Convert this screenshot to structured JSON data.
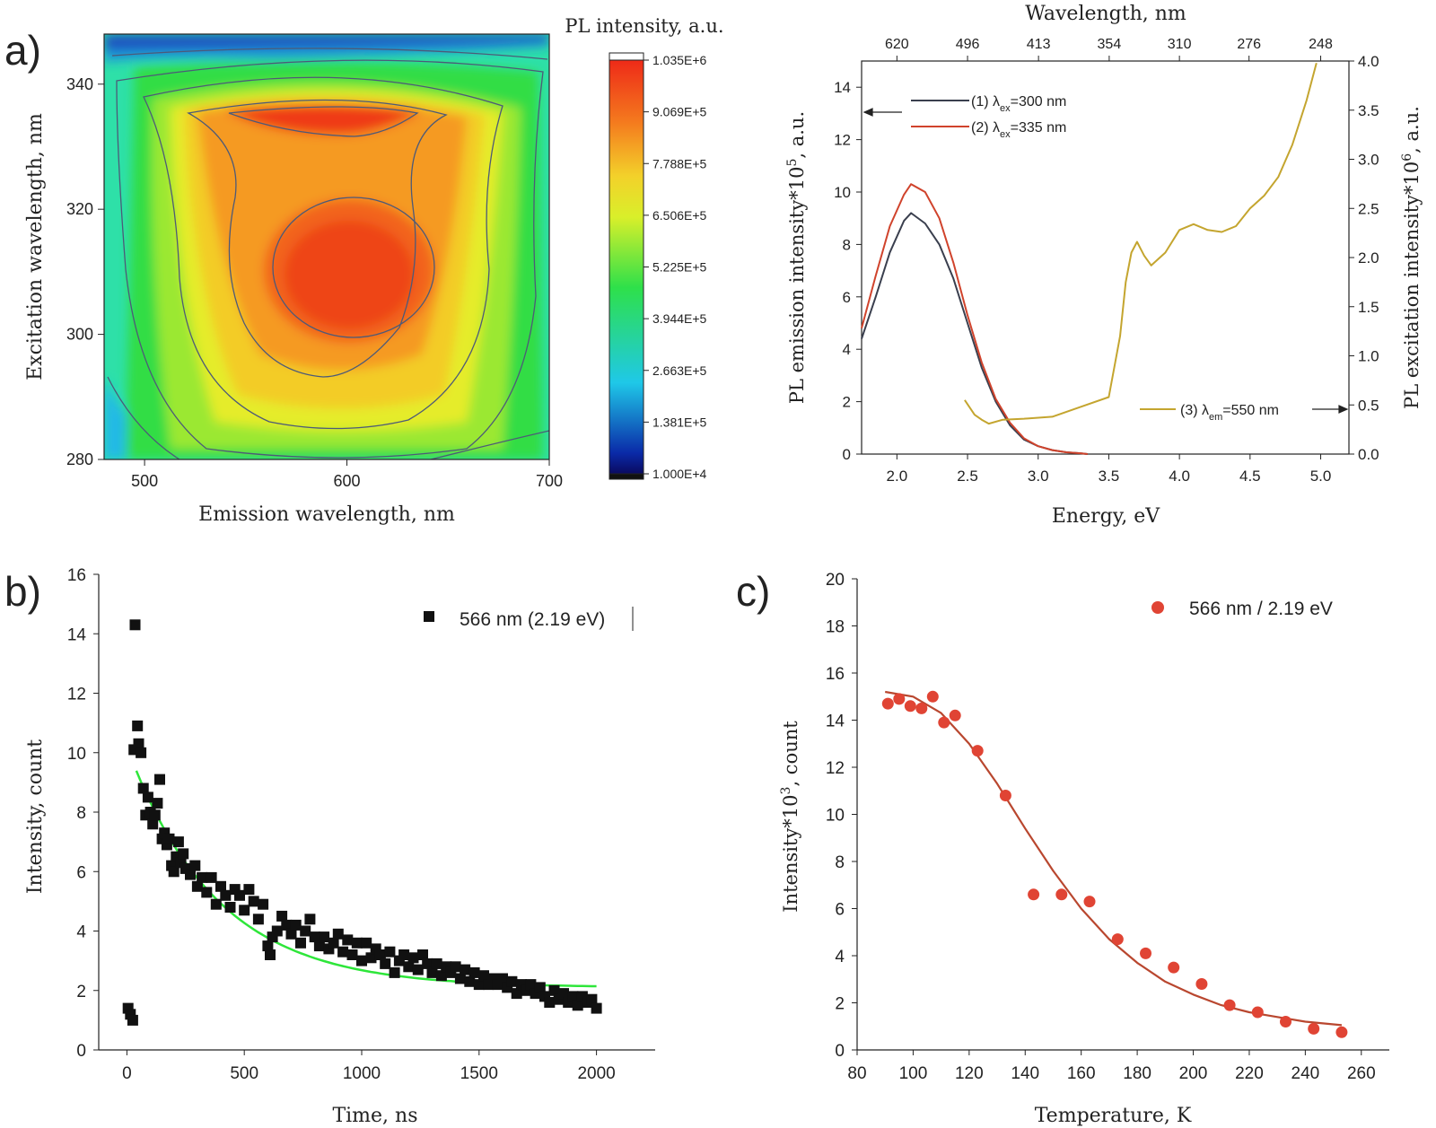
{
  "panel_labels": {
    "a": "a)",
    "b": "b)",
    "c": "c)"
  },
  "chart_data": [
    {
      "id": "a-map",
      "type": "heatmap",
      "xlabel": "Emission wavelength, nm",
      "ylabel": "Excitation wavelength, nm",
      "xlim": [
        480,
        700
      ],
      "ylim": [
        280,
        348
      ],
      "xticks": [
        "500",
        "600",
        "700"
      ],
      "yticks": [
        "280",
        "300",
        "320",
        "340"
      ],
      "peak_centers": [
        {
          "emission_nm": 590,
          "excitation_nm": 311,
          "intensity": 1000000
        },
        {
          "emission_nm": 590,
          "excitation_nm": 334,
          "intensity": 1000000
        }
      ],
      "colorbar": {
        "title": "PL intensity, a.u.",
        "range": [
          10000,
          1035000
        ],
        "ticks": [
          "1.035E+6",
          "9.069E+5",
          "7.788E+5",
          "6.506E+5",
          "5.225E+5",
          "3.944E+5",
          "2.663E+5",
          "1.381E+5",
          "1.000E+4"
        ]
      }
    },
    {
      "id": "a-spectra",
      "type": "line",
      "xlabel": "Energy, eV",
      "top_xlabel": "Wavelength, nm",
      "ylabel_left": "PL emission intensity*10⁵, a.u.",
      "ylabel_right": "PL excitation intensity*10⁶, a.u.",
      "xlim": [
        1.75,
        5.2
      ],
      "ylim_left": [
        0,
        15
      ],
      "ylim_right": [
        0,
        4
      ],
      "xticks": [
        "2.0",
        "2.5",
        "3.0",
        "3.5",
        "4.0",
        "4.5",
        "5.0"
      ],
      "yticks_left": [
        "0",
        "2",
        "4",
        "6",
        "8",
        "10",
        "12",
        "14"
      ],
      "yticks_right": [
        "0.0",
        "0.5",
        "1.0",
        "1.5",
        "2.0",
        "2.5",
        "3.0",
        "3.5",
        "4.0"
      ],
      "top_ticks": [
        "620",
        "496",
        "413",
        "354",
        "310",
        "276",
        "248"
      ],
      "series": [
        {
          "name": "(1) λex=300 nm",
          "label_main": "(1) λ",
          "label_sub": "ex",
          "label_tail": "=300 nm",
          "axis": "left",
          "color": "#3a3f4e",
          "x": [
            1.75,
            1.85,
            1.95,
            2.05,
            2.1,
            2.2,
            2.3,
            2.4,
            2.5,
            2.6,
            2.7,
            2.8,
            2.9,
            3.0,
            3.1,
            3.2,
            3.3,
            3.35
          ],
          "y": [
            4.4,
            6.0,
            7.7,
            8.9,
            9.2,
            8.8,
            8.0,
            6.7,
            5.0,
            3.3,
            2.0,
            1.1,
            0.55,
            0.3,
            0.15,
            0.07,
            0.03,
            0.0
          ]
        },
        {
          "name": "(2) λex=335 nm",
          "label_main": "(2) λ",
          "label_sub": "ex",
          "label_tail": "=335 nm",
          "axis": "left",
          "color": "#d0432c",
          "x": [
            1.75,
            1.85,
            1.95,
            2.05,
            2.1,
            2.2,
            2.3,
            2.4,
            2.5,
            2.6,
            2.7,
            2.8,
            2.9,
            3.0,
            3.1,
            3.2,
            3.3,
            3.35
          ],
          "y": [
            4.8,
            6.8,
            8.7,
            9.9,
            10.3,
            10.0,
            9.0,
            7.3,
            5.3,
            3.5,
            2.1,
            1.2,
            0.6,
            0.3,
            0.15,
            0.07,
            0.03,
            0.0
          ]
        },
        {
          "name": "(3) λem=550 nm",
          "label_main": "(3) λ",
          "label_sub": "em",
          "label_tail": "=550 nm",
          "axis": "right",
          "color": "#c4a52f",
          "x": [
            2.48,
            2.55,
            2.6,
            2.65,
            2.75,
            2.9,
            3.1,
            3.3,
            3.5,
            3.58,
            3.62,
            3.66,
            3.7,
            3.75,
            3.8,
            3.9,
            4.0,
            4.1,
            4.2,
            4.3,
            4.4,
            4.5,
            4.6,
            4.7,
            4.8,
            4.9,
            4.97
          ],
          "y": [
            0.55,
            0.4,
            0.35,
            0.31,
            0.35,
            0.36,
            0.38,
            0.48,
            0.58,
            1.2,
            1.75,
            2.05,
            2.16,
            2.02,
            1.92,
            2.05,
            2.28,
            2.34,
            2.28,
            2.26,
            2.32,
            2.5,
            2.63,
            2.82,
            3.15,
            3.6,
            3.98
          ]
        }
      ],
      "annotations": [
        "left-arrow at 13 (left axis)",
        "right-arrow at 0.48 (right axis)"
      ]
    },
    {
      "id": "b",
      "type": "scatter",
      "xlabel": "Time, ns",
      "ylabel": "Intensity, count",
      "xlim": [
        -120,
        2250
      ],
      "ylim": [
        0,
        16
      ],
      "xticks": [
        "0",
        "500",
        "1000",
        "1500",
        "2000"
      ],
      "yticks": [
        "0",
        "2",
        "4",
        "6",
        "8",
        "10",
        "12",
        "14",
        "16"
      ],
      "legend": "566 nm (2.19 eV)",
      "fit_color": "#2ee63a",
      "fit": {
        "model": "y = A*exp(-t/tau) + C",
        "A": 8.1,
        "tau": 380,
        "C": 2.1,
        "x_range": [
          40,
          2000
        ]
      },
      "points": [
        [
          5,
          1.4
        ],
        [
          15,
          1.2
        ],
        [
          25,
          1.0
        ],
        [
          35,
          14.3
        ],
        [
          45,
          10.9
        ],
        [
          30,
          10.1
        ],
        [
          50,
          10.3
        ],
        [
          60,
          10.0
        ],
        [
          70,
          8.8
        ],
        [
          80,
          7.9
        ],
        [
          90,
          8.5
        ],
        [
          100,
          8.0
        ],
        [
          110,
          7.6
        ],
        [
          120,
          7.9
        ],
        [
          130,
          8.3
        ],
        [
          140,
          9.1
        ],
        [
          150,
          7.1
        ],
        [
          160,
          7.3
        ],
        [
          170,
          6.9
        ],
        [
          180,
          7.1
        ],
        [
          190,
          6.2
        ],
        [
          200,
          6.0
        ],
        [
          210,
          6.5
        ],
        [
          220,
          7.0
        ],
        [
          230,
          6.3
        ],
        [
          240,
          6.6
        ],
        [
          250,
          6.1
        ],
        [
          270,
          5.9
        ],
        [
          290,
          6.2
        ],
        [
          300,
          5.5
        ],
        [
          320,
          5.8
        ],
        [
          340,
          5.3
        ],
        [
          360,
          5.8
        ],
        [
          380,
          4.9
        ],
        [
          400,
          5.5
        ],
        [
          420,
          5.2
        ],
        [
          440,
          4.8
        ],
        [
          460,
          5.4
        ],
        [
          480,
          5.2
        ],
        [
          500,
          4.7
        ],
        [
          520,
          5.4
        ],
        [
          540,
          5.0
        ],
        [
          560,
          4.4
        ],
        [
          580,
          4.9
        ],
        [
          600,
          3.5
        ],
        [
          610,
          3.2
        ],
        [
          620,
          3.8
        ],
        [
          640,
          4.0
        ],
        [
          660,
          4.5
        ],
        [
          680,
          4.2
        ],
        [
          700,
          3.9
        ],
        [
          720,
          4.2
        ],
        [
          740,
          3.6
        ],
        [
          760,
          4.0
        ],
        [
          780,
          4.4
        ],
        [
          800,
          3.8
        ],
        [
          820,
          3.5
        ],
        [
          840,
          3.8
        ],
        [
          860,
          3.4
        ],
        [
          880,
          3.6
        ],
        [
          900,
          3.9
        ],
        [
          920,
          3.3
        ],
        [
          940,
          3.7
        ],
        [
          960,
          3.2
        ],
        [
          980,
          3.6
        ],
        [
          1000,
          3.0
        ],
        [
          1020,
          3.6
        ],
        [
          1040,
          3.1
        ],
        [
          1060,
          3.4
        ],
        [
          1080,
          3.2
        ],
        [
          1100,
          2.9
        ],
        [
          1120,
          3.3
        ],
        [
          1140,
          2.6
        ],
        [
          1160,
          3.0
        ],
        [
          1180,
          3.2
        ],
        [
          1200,
          2.8
        ],
        [
          1220,
          3.1
        ],
        [
          1240,
          2.7
        ],
        [
          1260,
          3.2
        ],
        [
          1280,
          2.9
        ],
        [
          1300,
          2.6
        ],
        [
          1320,
          2.9
        ],
        [
          1340,
          2.5
        ],
        [
          1360,
          2.8
        ],
        [
          1380,
          2.6
        ],
        [
          1400,
          2.8
        ],
        [
          1420,
          2.4
        ],
        [
          1440,
          2.7
        ],
        [
          1460,
          2.3
        ],
        [
          1480,
          2.6
        ],
        [
          1500,
          2.2
        ],
        [
          1520,
          2.5
        ],
        [
          1540,
          2.2
        ],
        [
          1560,
          2.4
        ],
        [
          1580,
          2.2
        ],
        [
          1600,
          2.4
        ],
        [
          1620,
          2.1
        ],
        [
          1640,
          2.3
        ],
        [
          1660,
          1.9
        ],
        [
          1680,
          2.2
        ],
        [
          1700,
          2.0
        ],
        [
          1720,
          2.2
        ],
        [
          1740,
          1.9
        ],
        [
          1760,
          2.1
        ],
        [
          1780,
          1.8
        ],
        [
          1800,
          1.6
        ],
        [
          1820,
          2.0
        ],
        [
          1840,
          1.7
        ],
        [
          1860,
          1.9
        ],
        [
          1880,
          1.6
        ],
        [
          1900,
          1.8
        ],
        [
          1920,
          1.5
        ],
        [
          1940,
          1.8
        ],
        [
          1960,
          1.6
        ],
        [
          1980,
          1.7
        ],
        [
          2000,
          1.4
        ]
      ]
    },
    {
      "id": "c",
      "type": "scatter",
      "xlabel": "Temperature, K",
      "ylabel": "Intensity*10³, count",
      "xlim": [
        80,
        270
      ],
      "ylim": [
        0,
        20
      ],
      "xticks": [
        "80",
        "100",
        "120",
        "140",
        "160",
        "180",
        "200",
        "220",
        "240",
        "260"
      ],
      "yticks": [
        "0",
        "2",
        "4",
        "6",
        "8",
        "10",
        "12",
        "14",
        "16",
        "18",
        "20"
      ],
      "legend": "566 nm / 2.19 eV",
      "color": "#e04434",
      "fit_color": "#b9472f",
      "fit_points": [
        [
          90,
          15.2
        ],
        [
          100,
          15.0
        ],
        [
          110,
          14.3
        ],
        [
          120,
          13.0
        ],
        [
          130,
          11.3
        ],
        [
          140,
          9.4
        ],
        [
          150,
          7.6
        ],
        [
          160,
          6.0
        ],
        [
          170,
          4.7
        ],
        [
          180,
          3.7
        ],
        [
          190,
          2.9
        ],
        [
          200,
          2.35
        ],
        [
          210,
          1.9
        ],
        [
          220,
          1.6
        ],
        [
          230,
          1.4
        ],
        [
          240,
          1.2
        ],
        [
          253,
          1.05
        ]
      ],
      "points": [
        [
          91,
          14.7
        ],
        [
          95,
          14.9
        ],
        [
          99,
          14.6
        ],
        [
          103,
          14.5
        ],
        [
          107,
          15.0
        ],
        [
          111,
          13.9
        ],
        [
          115,
          14.2
        ],
        [
          123,
          12.7
        ],
        [
          133,
          10.8
        ],
        [
          143,
          6.6
        ],
        [
          153,
          6.6
        ],
        [
          163,
          6.3
        ],
        [
          173,
          4.7
        ],
        [
          183,
          4.1
        ],
        [
          193,
          3.5
        ],
        [
          203,
          2.8
        ],
        [
          213,
          1.9
        ],
        [
          223,
          1.6
        ],
        [
          233,
          1.2
        ],
        [
          243,
          0.9
        ],
        [
          253,
          0.75
        ]
      ]
    }
  ]
}
